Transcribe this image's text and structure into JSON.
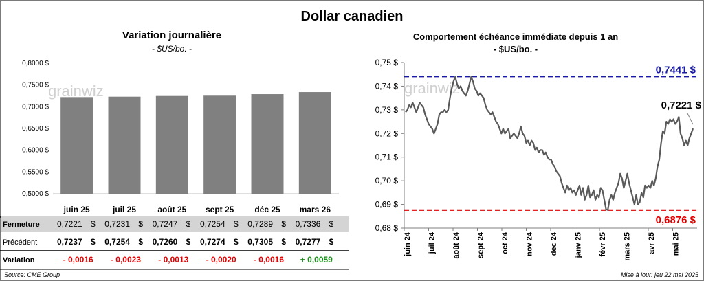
{
  "title": "Dollar canadien",
  "left_chart": {
    "title": "Variation  journalière",
    "subtitle": "- $US/bo. -"
  },
  "right_chart": {
    "title": "Comportement échéance immédiate depuis 1 an",
    "subtitle": "- $US/bo. -"
  },
  "watermark": "grainwiz",
  "table": {
    "rows": [
      {
        "label": "Fermeture",
        "values": [
          "0,7221",
          "0,7231",
          "0,7247",
          "0,7254",
          "0,7289",
          "0,7336"
        ],
        "unit": "$",
        "shaded": true,
        "bold": false
      },
      {
        "label": "Précédent",
        "values": [
          "0,7237",
          "0,7254",
          "0,7260",
          "0,7274",
          "0,7305",
          "0,7277"
        ],
        "unit": "$",
        "shaded": false,
        "bold": true
      },
      {
        "label": "Variation",
        "values": [
          "- 0,0016",
          "- 0,0023",
          "- 0,0013",
          "- 0,0020",
          "- 0,0016",
          "+ 0,0059"
        ],
        "unit": "",
        "shaded": false,
        "bold": true,
        "colors": [
          "#e00000",
          "#e00000",
          "#e00000",
          "#e00000",
          "#e00000",
          "#1a8a1a"
        ]
      }
    ]
  },
  "footer": {
    "source": "Source: CME Group",
    "updated": "Mise à jour: jeu 22 mai 2025"
  },
  "chart_data": [
    {
      "type": "bar",
      "categories": [
        "juin 25",
        "juil 25",
        "août 25",
        "sept 25",
        "déc 25",
        "mars 26"
      ],
      "values": [
        0.7221,
        0.7231,
        0.7247,
        0.7254,
        0.7289,
        0.7336
      ],
      "ylim": [
        0.5,
        0.8
      ],
      "yticks": [
        0.5,
        0.55,
        0.6,
        0.65,
        0.7,
        0.75,
        0.8
      ],
      "ytick_labels": [
        "0,5000 $",
        "0,5500 $",
        "0,6000 $",
        "0,6500 $",
        "0,7000 $",
        "0,7500 $",
        "0,8000 $"
      ],
      "bar_color": "#808080",
      "grid": false
    },
    {
      "type": "line",
      "ylim": [
        0.68,
        0.75
      ],
      "yticks": [
        0.68,
        0.69,
        0.7,
        0.71,
        0.72,
        0.73,
        0.74,
        0.75
      ],
      "ytick_labels": [
        "0,68 $",
        "0,69 $",
        "0,70 $",
        "0,71 $",
        "0,72 $",
        "0,73 $",
        "0,74 $",
        "0,75 $"
      ],
      "xtick_labels": [
        "juin 24",
        "juil 24",
        "août 24",
        "sept 24",
        "oct 24",
        "nov 24",
        "déc 24",
        "janv 25",
        "févr 25",
        "mars 25",
        "avr 25",
        "mai 25"
      ],
      "line_color": "#595959",
      "high": {
        "value": 0.7441,
        "label": "0,7441 $",
        "color": "#1a1aa8"
      },
      "low": {
        "value": 0.6876,
        "label": "0,6876 $",
        "color": "#e00000"
      },
      "last": {
        "value": 0.7221,
        "label": "0,7221 $"
      },
      "series": [
        {
          "values": [
            0.729,
            0.73,
            0.732,
            0.731,
            0.733,
            0.731,
            0.729,
            0.731,
            0.733,
            0.732,
            0.731,
            0.728,
            0.726,
            0.724,
            0.723,
            0.722,
            0.72,
            0.722,
            0.724,
            0.728,
            0.729,
            0.729,
            0.73,
            0.729,
            0.73,
            0.735,
            0.739,
            0.742,
            0.744,
            0.741,
            0.739,
            0.74,
            0.738,
            0.737,
            0.736,
            0.738,
            0.741,
            0.744,
            0.742,
            0.739,
            0.738,
            0.736,
            0.737,
            0.736,
            0.735,
            0.732,
            0.73,
            0.729,
            0.728,
            0.729,
            0.727,
            0.725,
            0.724,
            0.722,
            0.72,
            0.722,
            0.72,
            0.721,
            0.722,
            0.718,
            0.719,
            0.72,
            0.719,
            0.718,
            0.72,
            0.723,
            0.72,
            0.719,
            0.716,
            0.717,
            0.715,
            0.717,
            0.716,
            0.713,
            0.714,
            0.712,
            0.713,
            0.713,
            0.711,
            0.712,
            0.71,
            0.709,
            0.709,
            0.707,
            0.706,
            0.704,
            0.703,
            0.702,
            0.699,
            0.697,
            0.695,
            0.698,
            0.696,
            0.697,
            0.695,
            0.696,
            0.694,
            0.696,
            0.698,
            0.694,
            0.697,
            0.692,
            0.694,
            0.698,
            0.693,
            0.694,
            0.696,
            0.692,
            0.694,
            0.693,
            0.697,
            0.696,
            0.692,
            0.688,
            0.6876,
            0.692,
            0.694,
            0.692,
            0.695,
            0.697,
            0.699,
            0.703,
            0.701,
            0.697,
            0.7,
            0.703,
            0.699,
            0.696,
            0.693,
            0.69,
            0.694,
            0.69,
            0.691,
            0.695,
            0.693,
            0.698,
            0.697,
            0.698,
            0.697,
            0.7,
            0.698,
            0.701,
            0.706,
            0.709,
            0.716,
            0.721,
            0.72,
            0.725,
            0.724,
            0.726,
            0.725,
            0.726,
            0.724,
            0.725,
            0.727,
            0.72,
            0.718,
            0.715,
            0.717,
            0.715,
            0.718,
            0.72,
            0.7221
          ]
        }
      ]
    }
  ]
}
